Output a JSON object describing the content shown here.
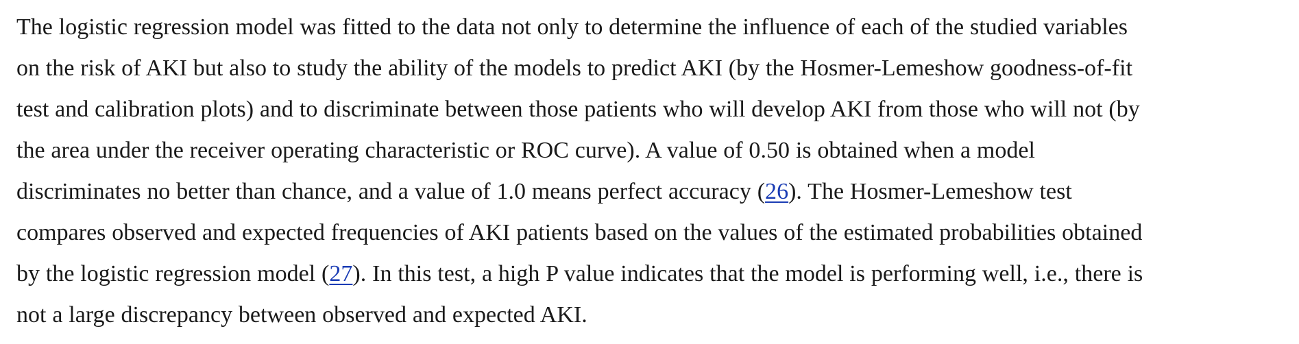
{
  "article": {
    "paragraph": {
      "l1": "The logistic regression model was fitted to the data not only to determine the influence of each of the studied variables",
      "l2": "on the risk of AKI but also to study the ability of the models to predict AKI (by the Hosmer-Lemeshow goodness-of-fit",
      "l3": "test and calibration plots) and to discriminate between those patients who will develop AKI from those who will not (by",
      "l4": "the area under the receiver operating characteristic or ROC curve). A value of 0.50 is obtained when a model",
      "l5_before": "discriminates no better than chance, and a value of 1.0 means perfect accuracy (",
      "l5_after": "). The Hosmer-Lemeshow test",
      "l6": "compares observed and expected frequencies of AKI patients based on the values of the estimated probabilities obtained",
      "l7_before": "by the logistic regression model (",
      "l7_after": "). In this test, a high P value indicates that the model is performing well, i.e., there is",
      "l8": "not a large discrepancy between observed and expected AKI."
    },
    "refs": {
      "r26": "26",
      "r27": "27"
    }
  },
  "colors": {
    "text": "#1a1a1a",
    "link": "#1a3cb4",
    "background": "#ffffff"
  }
}
